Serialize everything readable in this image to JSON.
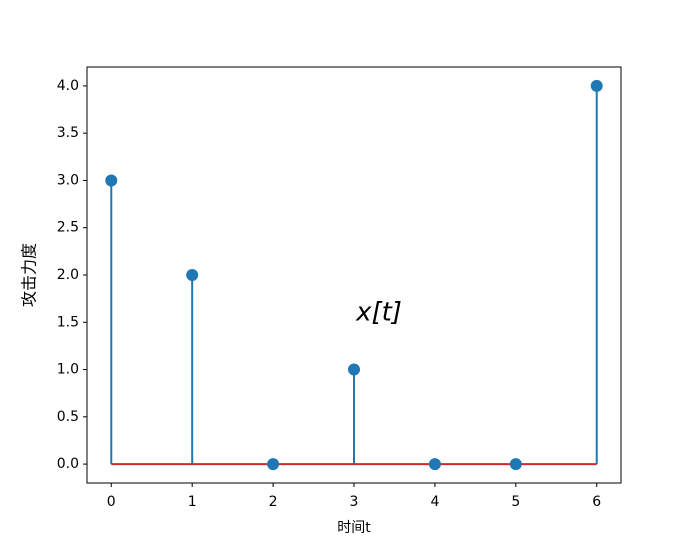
{
  "chart_data": {
    "type": "stem",
    "xlabel": "时间t",
    "ylabel": "攻击力度",
    "annotation": "x[t]",
    "x": [
      0,
      1,
      2,
      3,
      4,
      5,
      6
    ],
    "values": [
      3,
      2,
      0,
      1,
      0,
      0,
      4
    ],
    "color": "#1f77b4",
    "baseline_color": "#d62728",
    "xlim": [
      -0.3,
      6.3
    ],
    "ylim": [
      -0.2,
      4.2
    ],
    "xticks": [
      0,
      1,
      2,
      3,
      4,
      5,
      6
    ],
    "yticks": [
      {
        "value": 0,
        "label": "0.0"
      },
      {
        "value": 0.5,
        "label": "0.5"
      },
      {
        "value": 1,
        "label": "1.0"
      },
      {
        "value": 1.5,
        "label": "1.5"
      },
      {
        "value": 2,
        "label": "2.0"
      },
      {
        "value": 2.5,
        "label": "2.5"
      },
      {
        "value": 3,
        "label": "3.0"
      },
      {
        "value": 3.5,
        "label": "3.5"
      },
      {
        "value": 4,
        "label": "4.0"
      }
    ]
  }
}
